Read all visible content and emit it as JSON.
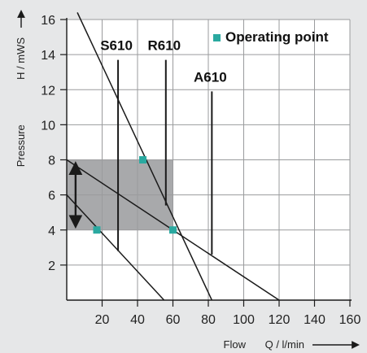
{
  "chart_data": {
    "type": "line",
    "xlabel": "Q / l/min",
    "xlabel_prefix": "Flow",
    "ylabel": "H / mWS",
    "ylabel_prefix": "Pressure",
    "xlim": [
      0,
      160
    ],
    "ylim": [
      0,
      16
    ],
    "x_ticks": [
      20,
      40,
      60,
      80,
      100,
      120,
      140,
      160
    ],
    "y_ticks": [
      2,
      4,
      6,
      8,
      10,
      12,
      14,
      16
    ],
    "grid": true,
    "shaded_region": {
      "x": [
        0,
        60
      ],
      "y": [
        4,
        8
      ]
    },
    "range_arrow": {
      "x": 5,
      "y": [
        4,
        8
      ]
    },
    "pump_curves": [
      {
        "points": [
          [
            6,
            16.4
          ],
          [
            82,
            0
          ]
        ]
      },
      {
        "points": [
          [
            0,
            8
          ],
          [
            120,
            0
          ]
        ]
      },
      {
        "points": [
          [
            0,
            6
          ],
          [
            55,
            0
          ]
        ]
      }
    ],
    "series": [
      {
        "name": "S610",
        "x": 29,
        "y": [
          2.8,
          13.7
        ]
      },
      {
        "name": "R610",
        "x": 56,
        "y": [
          5.4,
          13.7
        ]
      },
      {
        "name": "A610",
        "x": 82,
        "y": [
          2.6,
          11.9
        ]
      }
    ],
    "operating_points": [
      {
        "x": 43,
        "y": 8
      },
      {
        "x": 17,
        "y": 4
      },
      {
        "x": 60,
        "y": 4
      }
    ],
    "legend": {
      "label": "Operating point",
      "color": "#2aa9a0",
      "position": "top-right"
    },
    "colors": {
      "background": "#e6e7e8",
      "shade": "#a8a9ab",
      "line": "#1a1a1a",
      "point": "#2aa9a0"
    }
  }
}
